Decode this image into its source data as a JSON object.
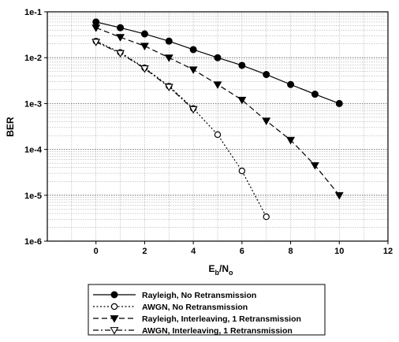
{
  "chart_data": {
    "type": "line",
    "title": "",
    "xlabel_main": "E",
    "xlabel_sub1": "b",
    "xlabel_mid": "/N",
    "xlabel_sub2": "o",
    "ylabel": "BER",
    "xlim": [
      -2,
      12
    ],
    "ylim": [
      1e-06,
      0.1
    ],
    "y_scale": "log",
    "grid": true,
    "legend_position": "bottom",
    "x_ticks": [
      "0",
      "2",
      "4",
      "6",
      "8",
      "10",
      "12"
    ],
    "y_ticks": [
      "1e-6",
      "1e-5",
      "1e-4",
      "1e-3",
      "1e-2",
      "1e-1"
    ],
    "series": [
      {
        "name": "Rayleigh, No Retransmission",
        "line_style": "solid",
        "marker": "filled-circle",
        "x": [
          0,
          1,
          2,
          3,
          4,
          5,
          6,
          7,
          8,
          9,
          10
        ],
        "y": [
          0.06,
          0.045,
          0.033,
          0.023,
          0.015,
          0.01,
          0.0068,
          0.0043,
          0.0026,
          0.0016,
          0.001
        ]
      },
      {
        "name": "AWGN, No Retransmission",
        "line_style": "dotted",
        "marker": "open-circle",
        "x": [
          0,
          1,
          2,
          3,
          4,
          5,
          6,
          7
        ],
        "y": [
          0.023,
          0.013,
          0.006,
          0.0024,
          0.00078,
          0.00021,
          3.4e-05,
          3.4e-06
        ]
      },
      {
        "name": "Rayleigh, Interleaving, 1 Retransmission",
        "line_style": "dashed",
        "marker": "filled-triangle-down",
        "x": [
          0,
          1,
          2,
          3,
          4,
          5,
          6,
          7,
          8,
          9,
          10
        ],
        "y": [
          0.045,
          0.028,
          0.018,
          0.01,
          0.0055,
          0.0026,
          0.0012,
          0.00042,
          0.00016,
          4.5e-05,
          1e-05
        ]
      },
      {
        "name": "AWGN, Interleaving, 1 Retransmission",
        "line_style": "dashdot",
        "marker": "open-triangle-down",
        "x": [
          0,
          1,
          2,
          3,
          4
        ],
        "y": [
          0.022,
          0.0125,
          0.0058,
          0.0023,
          0.00075
        ]
      }
    ]
  }
}
